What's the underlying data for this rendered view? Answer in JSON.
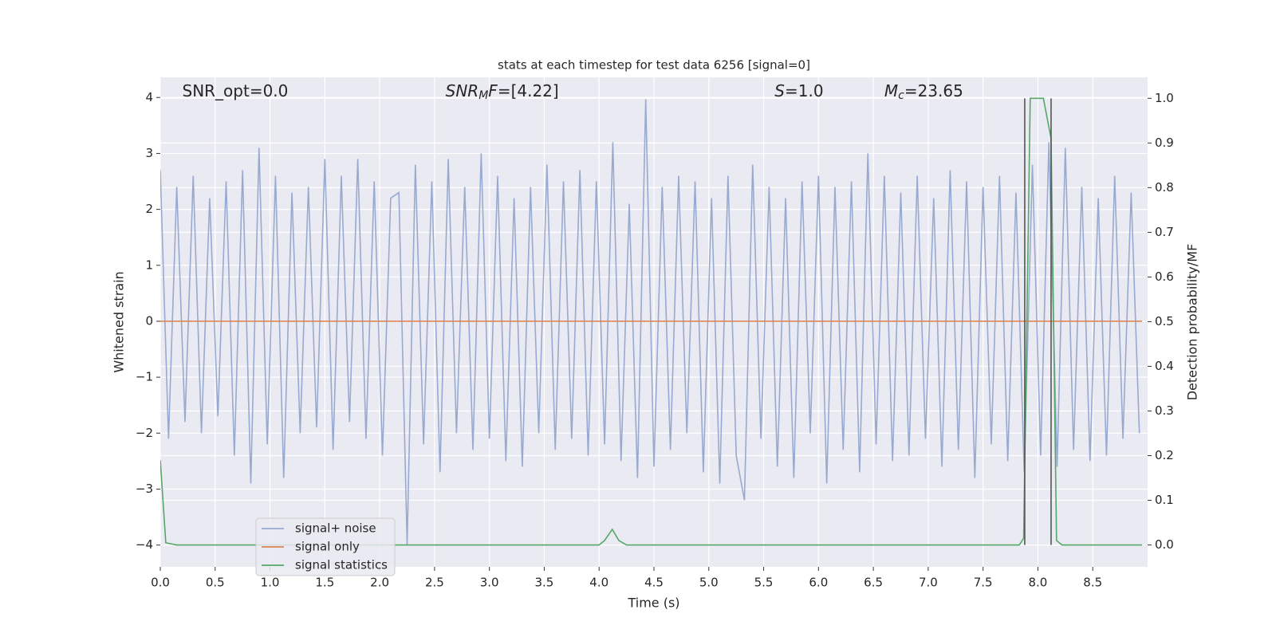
{
  "chart_data": {
    "type": "line",
    "title": "stats at each timestep for test data 6256 [signal=0]",
    "xlabel": "Time (s)",
    "ylabel": "Whitened strain",
    "y2label": "Detection probability/MF",
    "xlim": [
      0,
      9.0
    ],
    "ylim": [
      -4.39,
      4.36
    ],
    "y2lim": [
      -0.049,
      1.047
    ],
    "xticks": [
      {
        "value": 0,
        "label": "0.0"
      },
      {
        "value": 0.5,
        "label": "0.5"
      },
      {
        "value": 1,
        "label": "1.0"
      },
      {
        "value": 1.5,
        "label": "1.5"
      },
      {
        "value": 2,
        "label": "2.0"
      },
      {
        "value": 2.5,
        "label": "2.5"
      },
      {
        "value": 3,
        "label": "3.0"
      },
      {
        "value": 3.5,
        "label": "3.5"
      },
      {
        "value": 4,
        "label": "4.0"
      },
      {
        "value": 4.5,
        "label": "4.5"
      },
      {
        "value": 5,
        "label": "5.0"
      },
      {
        "value": 5.5,
        "label": "5.5"
      },
      {
        "value": 6,
        "label": "6.0"
      },
      {
        "value": 6.5,
        "label": "6.5"
      },
      {
        "value": 7,
        "label": "7.0"
      },
      {
        "value": 7.5,
        "label": "7.5"
      },
      {
        "value": 8,
        "label": "8.0"
      },
      {
        "value": 8.5,
        "label": "8.5"
      }
    ],
    "yticks": [
      {
        "value": -4,
        "label": "−4"
      },
      {
        "value": -3,
        "label": "−3"
      },
      {
        "value": -2,
        "label": "−2"
      },
      {
        "value": -1,
        "label": "−1"
      },
      0,
      1,
      2,
      3,
      4
    ],
    "y2ticks": [
      {
        "value": 0,
        "label": "0.0"
      },
      {
        "value": 0.1,
        "label": "0.1"
      },
      {
        "value": 0.2,
        "label": "0.2"
      },
      {
        "value": 0.3,
        "label": "0.3"
      },
      {
        "value": 0.4,
        "label": "0.4"
      },
      {
        "value": 0.5,
        "label": "0.5"
      },
      {
        "value": 0.6,
        "label": "0.6"
      },
      {
        "value": 0.7,
        "label": "0.7"
      },
      {
        "value": 0.8,
        "label": "0.8"
      },
      {
        "value": 0.9,
        "label": "0.9"
      },
      {
        "value": 1,
        "label": "1.0"
      }
    ],
    "grid": true,
    "background": "#eaeaf2",
    "legend": "lower left",
    "series": [
      {
        "name": "signal+ noise",
        "color": "#98aad0",
        "axis": "y",
        "x": [
          0,
          0.075,
          0.15,
          0.225,
          0.3,
          0.375,
          0.45,
          0.525,
          0.6,
          0.675,
          0.75,
          0.825,
          0.9,
          0.975,
          1.05,
          1.125,
          1.2,
          1.275,
          1.35,
          1.425,
          1.5,
          1.575,
          1.65,
          1.725,
          1.8,
          1.875,
          1.95,
          2.025,
          2.1,
          2.175,
          2.25,
          2.325,
          2.4,
          2.475,
          2.55,
          2.625,
          2.7,
          2.775,
          2.85,
          2.925,
          3,
          3.075,
          3.15,
          3.225,
          3.3,
          3.375,
          3.45,
          3.525,
          3.6,
          3.675,
          3.75,
          3.825,
          3.9,
          3.975,
          4.05,
          4.125,
          4.2,
          4.275,
          4.35,
          4.425,
          4.5,
          4.575,
          4.65,
          4.725,
          4.8,
          4.875,
          4.95,
          5.025,
          5.1,
          5.175,
          5.25,
          5.325,
          5.4,
          5.475,
          5.55,
          5.625,
          5.7,
          5.775,
          5.85,
          5.925,
          6,
          6.075,
          6.15,
          6.225,
          6.3,
          6.375,
          6.45,
          6.525,
          6.6,
          6.675,
          6.75,
          6.825,
          6.9,
          6.975,
          7.05,
          7.125,
          7.2,
          7.275,
          7.35,
          7.425,
          7.5,
          7.575,
          7.65,
          7.725,
          7.8,
          7.875,
          7.95,
          8.025,
          8.1,
          8.175,
          8.25,
          8.325,
          8.4,
          8.475,
          8.55,
          8.625,
          8.7,
          8.775,
          8.85,
          8.925
        ],
        "values": [
          2.7,
          -2.1,
          2.4,
          -1.8,
          2.6,
          -2.0,
          2.2,
          -1.7,
          2.5,
          -2.4,
          2.7,
          -2.9,
          3.1,
          -2.2,
          2.6,
          -2.8,
          2.3,
          -2.0,
          2.4,
          -1.9,
          2.9,
          -2.3,
          2.6,
          -1.8,
          2.9,
          -2.1,
          2.5,
          -2.4,
          2.2,
          2.3,
          -4.0,
          2.8,
          -2.2,
          2.5,
          -2.7,
          2.9,
          -2.0,
          2.4,
          -2.3,
          3.0,
          -2.1,
          2.6,
          -2.5,
          2.2,
          -2.6,
          2.4,
          -2.0,
          2.8,
          -2.3,
          2.5,
          -2.1,
          2.7,
          -2.4,
          2.5,
          -2.2,
          3.2,
          -2.5,
          2.1,
          -2.8,
          3.97,
          -2.6,
          2.4,
          -2.3,
          2.6,
          -2.0,
          2.5,
          -2.7,
          2.2,
          -2.9,
          2.6,
          -2.4,
          -3.2,
          2.8,
          -2.1,
          2.4,
          -2.6,
          2.2,
          -2.8,
          2.5,
          -2.0,
          2.6,
          -2.9,
          2.4,
          -2.3,
          2.5,
          -2.7,
          3.0,
          -2.2,
          2.6,
          -2.5,
          2.3,
          -2.4,
          2.6,
          -2.1,
          2.2,
          -2.6,
          2.7,
          -2.3,
          2.5,
          -2.8,
          2.4,
          -2.2,
          2.6,
          -2.5,
          2.3,
          -2.7,
          2.8,
          -2.4,
          3.2,
          -2.6,
          3.1,
          -2.3,
          2.4,
          -2.5,
          2.2,
          -2.4,
          2.6,
          -2.1,
          2.3,
          -2.0
        ]
      },
      {
        "name": "signal only",
        "color": "#dd8452",
        "axis": "y",
        "x": [
          0,
          8.95
        ],
        "values": [
          0,
          0
        ]
      },
      {
        "name": "signal statistics",
        "color": "#55a868",
        "axis": "y2",
        "x": [
          0,
          0.05,
          0.15,
          4.0,
          4.05,
          4.12,
          4.18,
          4.25,
          7.83,
          7.87,
          7.93,
          8.05,
          8.12,
          8.17,
          8.22,
          8.95
        ],
        "values": [
          0.19,
          0.005,
          0,
          0,
          0.01,
          0.035,
          0.01,
          0,
          0,
          0.015,
          1.0,
          1.0,
          0.91,
          0.01,
          0,
          0
        ]
      }
    ],
    "vlines": {
      "x": [
        7.88,
        8.12
      ],
      "y2_range": [
        0,
        1
      ],
      "color": "#555555"
    },
    "annotations": [
      [
        {
          "text": "SNR_opt=0.0",
          "style": "normal"
        }
      ],
      [
        {
          "text": "SNR",
          "style": "italic"
        },
        {
          "text": "M",
          "style": "italic-sub"
        },
        {
          "text": "F",
          "style": "italic"
        },
        {
          "text": "=[4.22]",
          "style": "normal"
        }
      ],
      [
        {
          "text": "S",
          "style": "italic"
        },
        {
          "text": "=1.0",
          "style": "normal"
        }
      ],
      [
        {
          "text": "M",
          "style": "italic"
        },
        {
          "text": "c",
          "style": "italic-sub"
        },
        {
          "text": "=23.65",
          "style": "normal"
        }
      ]
    ]
  }
}
